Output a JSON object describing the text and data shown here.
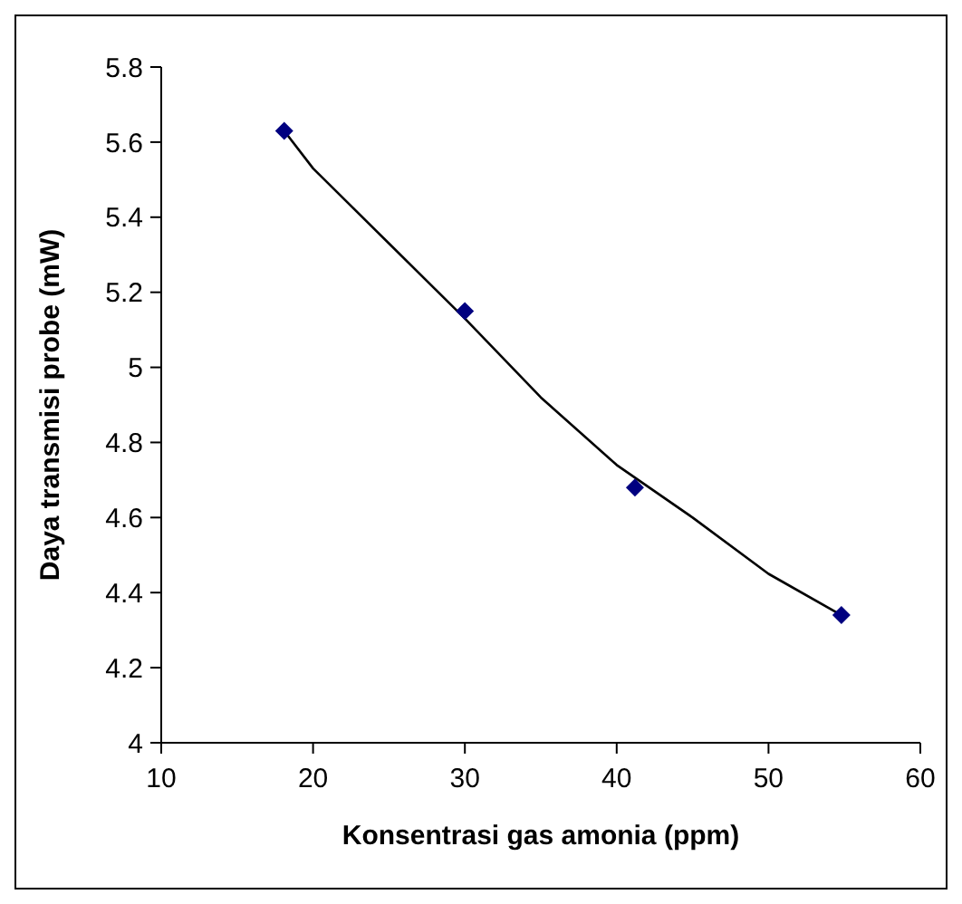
{
  "chart_data": {
    "type": "scatter",
    "xlabel": "Konsentrasi gas amonia (ppm)",
    "ylabel": "Daya transmisi probe (mW)",
    "xlim": [
      10,
      60
    ],
    "xticks": [
      10,
      20,
      30,
      40,
      50,
      60
    ],
    "ylim": [
      4,
      5.8
    ],
    "yticks": [
      4,
      4.2,
      4.4,
      4.6,
      4.8,
      5,
      5.2,
      5.4,
      5.6,
      5.8
    ],
    "grid": false,
    "legend": false,
    "series": [
      {
        "color": "#000080",
        "marker": "diamond",
        "x": [
          18.1,
          30,
          41.2,
          54.8
        ],
        "values": [
          5.63,
          5.15,
          4.68,
          4.34
        ]
      },
      {
        "type": "line",
        "color": "#000000",
        "marker": "none",
        "line_style": "solid",
        "x": [
          18.1,
          20,
          25,
          30,
          35,
          40,
          45,
          50,
          54.8
        ],
        "values": [
          5.63,
          5.53,
          5.33,
          5.13,
          4.92,
          4.74,
          4.6,
          4.45,
          4.34
        ]
      }
    ]
  }
}
